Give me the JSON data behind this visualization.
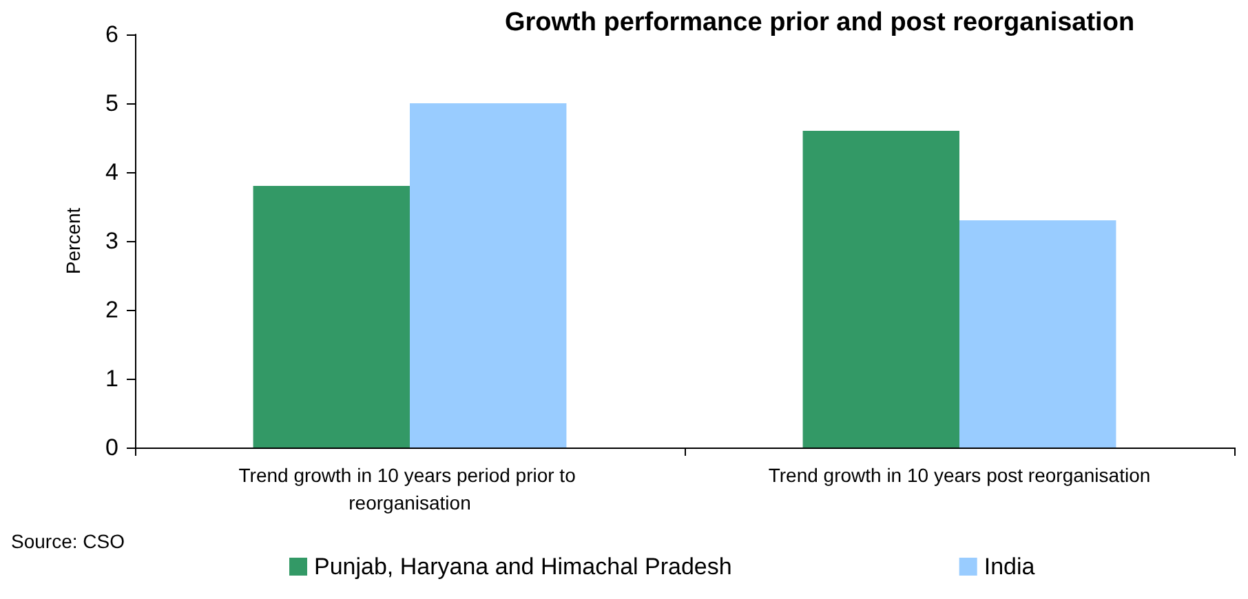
{
  "chart_data": {
    "type": "bar",
    "title": "Growth performance prior and post reorganisation",
    "ylabel": "Percent",
    "categories": [
      "Trend growth in 10 years period prior to reorganisation",
      "Trend growth in 10 years post reorganisation"
    ],
    "series": [
      {
        "name": "Punjab, Haryana and Himachal Pradesh",
        "color": "#339966",
        "values": [
          3.8,
          4.6
        ]
      },
      {
        "name": "India",
        "color": "#99ccff",
        "values": [
          5.0,
          3.3
        ]
      }
    ],
    "ylim": [
      0,
      6
    ],
    "yticks": [
      0,
      1,
      2,
      3,
      4,
      5,
      6
    ],
    "grid": false,
    "legend": "bottom",
    "annotations": [
      "Source: CSO"
    ]
  }
}
